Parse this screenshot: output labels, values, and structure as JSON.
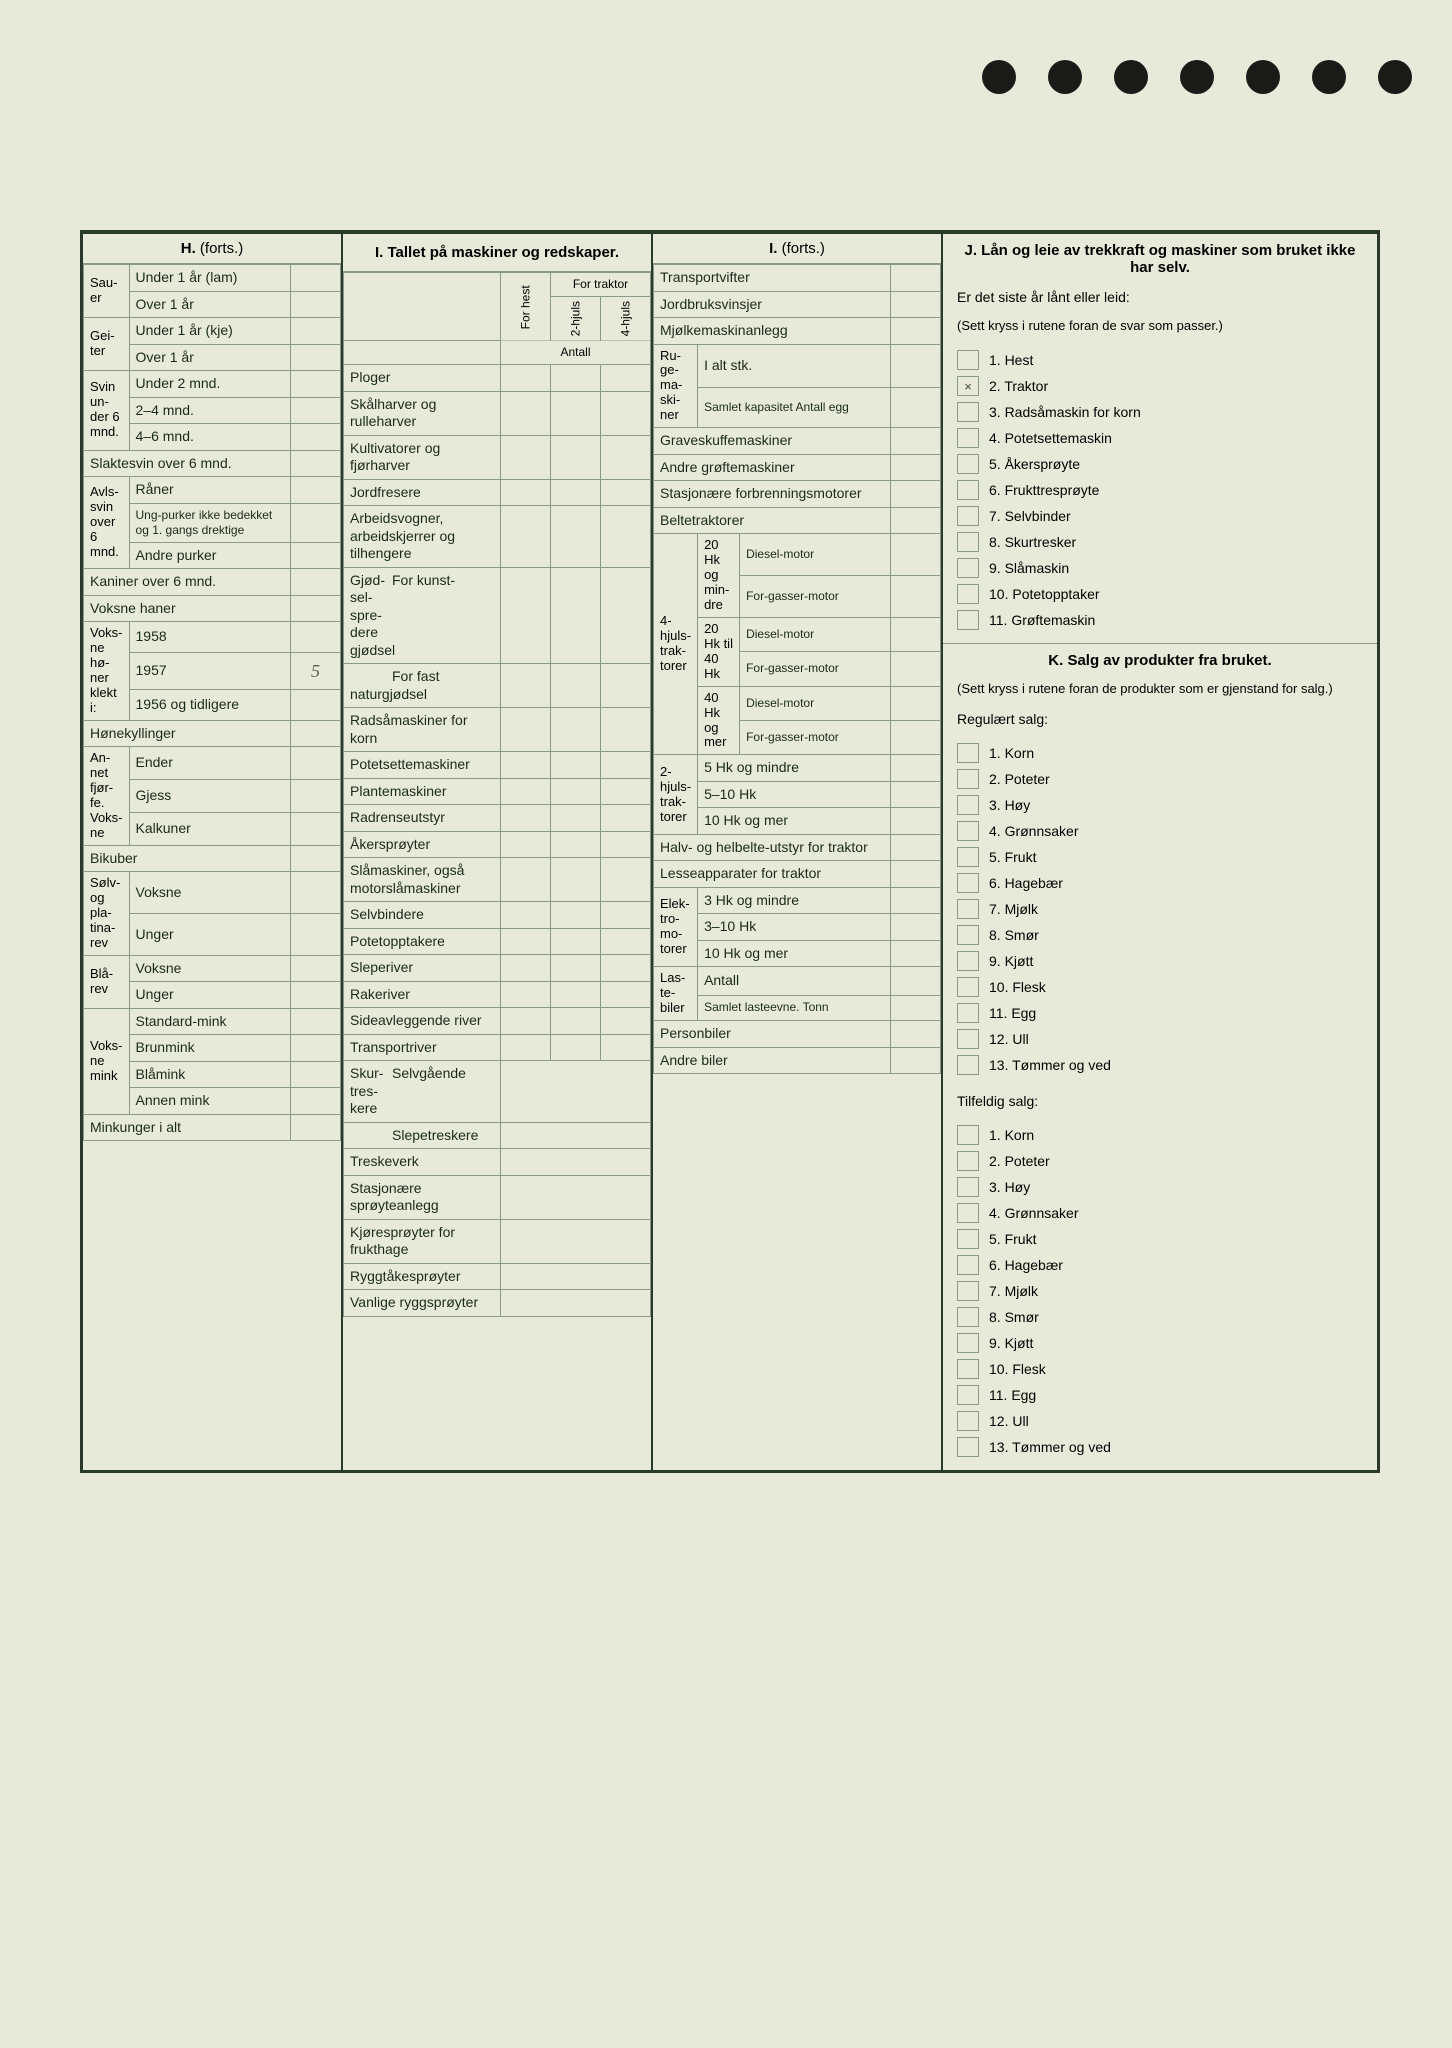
{
  "colors": {
    "paper": "#e8ead9",
    "ink": "#2a3a2a",
    "rule": "#8a9a8a",
    "hole": "#1a1a18"
  },
  "H": {
    "title_bold": "H.",
    "title_rest": "(forts.)",
    "sauer": "Sau-er",
    "sauer_rows": [
      "Under 1 år (lam)",
      "Over 1 år"
    ],
    "geiter": "Gei-ter",
    "geiter_rows": [
      "Under 1 år (kje)",
      "Over 1 år"
    ],
    "svin_under": "Svin un-der 6 mnd.",
    "svin_under_rows": [
      "Under 2 mnd.",
      "2–4 mnd.",
      "4–6 mnd."
    ],
    "slaktesvin": "Slaktesvin over 6 mnd.",
    "avlssvin": "Avls-svin over 6 mnd.",
    "avlssvin_rows": [
      "Råner",
      "Ung-purker ikke bedekket og 1. gangs drektige",
      "Andre purker"
    ],
    "kaniner": "Kaniner over 6 mnd.",
    "voksne_haner": "Voksne haner",
    "honer": "Voks-ne hø-ner klekt i:",
    "honer_rows": [
      "1958",
      "1957",
      "1956 og tidligere"
    ],
    "honekyllinger": "Hønekyllinger",
    "fjorfe": "An-net fjør-fe. Voks-ne",
    "fjorfe_rows": [
      "Ender",
      "Gjess",
      "Kalkuner"
    ],
    "bikuber": "Bikuber",
    "solvrev": "Sølv- og pla-tina-rev",
    "solvrev_rows": [
      "Voksne",
      "Unger"
    ],
    "blarev": "Blå-rev",
    "blarev_rows": [
      "Voksne",
      "Unger"
    ],
    "mink": "Voks-ne mink",
    "mink_rows": [
      "Standard-mink",
      "Brunmink",
      "Blåmink",
      "Annen mink"
    ],
    "minkunger": "Minkunger i alt",
    "handwritten_1957": "5"
  },
  "I": {
    "title_bold": "I.",
    "title_rest": "Tallet på maskiner og redskaper.",
    "forhest": "For hest",
    "tohjuls": "2-hjuls",
    "firehjuls": "4-hjuls",
    "for_traktor": "For traktor",
    "antall": "Antall",
    "rows": [
      "Ploger",
      "Skålharver og rulleharver",
      "Kultivatorer og fjørharver",
      "Jordfresere",
      "Arbeidsvogner, arbeidskjerrer og tilhengere"
    ],
    "gjodsel": "Gjød-sel-spre-dere",
    "gjodsel_rows": [
      "For kunst-gjødsel",
      "For fast naturgjødsel"
    ],
    "rows2": [
      "Radsåmaskiner for korn",
      "Potetsettemaskiner",
      "Plantemaskiner",
      "Radrenseutstyr",
      "Åkersprøyter",
      "Slåmaskiner, også motorslåmaskiner",
      "Selvbindere",
      "Potetopptakere",
      "Sleperiver",
      "Rakeriver",
      "Sideavleggende river",
      "Transportriver"
    ],
    "skurtreskere": "Skur-tres-kere",
    "skurtreskere_rows": [
      "Selvgående",
      "Slepetreskere"
    ],
    "rows3": [
      "Treskeverk",
      "Stasjonære sprøyteanlegg",
      "Kjøresprøyter for frukthage",
      "Ryggtåkesprøyter",
      "Vanlige ryggsprøyter"
    ]
  },
  "I2": {
    "title_bold": "I.",
    "title_rest": "(forts.)",
    "rows_top": [
      "Transportvifter",
      "Jordbruksvinsjer",
      "Mjølkemaskinanlegg"
    ],
    "ruge": "Ru-ge-ma-ski-ner",
    "ruge_rows": [
      "I alt stk.",
      "Samlet kapasitet Antall egg"
    ],
    "rows_mid": [
      "Graveskuffemaskiner",
      "Andre grøftemaskiner",
      "Stasjonære forbrenningsmotorer",
      "Beltetraktorer"
    ],
    "hjulstraktorer": "4-hjuls-trak-torer",
    "hk_groups": [
      "20 Hk og min-dre",
      "20 Hk til 40 Hk",
      "40 Hk og mer"
    ],
    "motor_types": [
      "Diesel-motor",
      "For-gasser-motor"
    ],
    "tohjuls_trak": "2-hjuls-trak-torer",
    "tohjuls_rows": [
      "5 Hk og mindre",
      "5–10 Hk",
      "10 Hk og mer"
    ],
    "halvbelte": "Halv- og helbelte-utstyr for traktor",
    "lesse": "Lesseapparater for traktor",
    "elektro": "Elek-tro-mo-torer",
    "elektro_rows": [
      "3 Hk og mindre",
      "3–10 Hk",
      "10 Hk og mer"
    ],
    "lastebiler": "Las-te-biler",
    "lastebiler_rows": [
      "Antall",
      "Samlet lasteevne. Tonn"
    ],
    "personbiler": "Personbiler",
    "andrebiler": "Andre biler"
  },
  "J": {
    "title": "J. Lån og leie av trekkraft og maskiner som bruket ikke har selv.",
    "q": "Er det siste år lånt eller leid:",
    "note": "(Sett kryss i rutene foran de svar som passer.)",
    "items": [
      "1. Hest",
      "2. Traktor",
      "3. Radsåmaskin for korn",
      "4. Potetsettemaskin",
      "5. Åkersprøyte",
      "6. Frukttresprøyte",
      "7. Selvbinder",
      "8. Skurtresker",
      "9. Slåmaskin",
      "10. Potetopptaker",
      "11. Grøftemaskin"
    ],
    "checked_index": 1,
    "check_mark": "×"
  },
  "K": {
    "title": "K. Salg av produkter fra bruket.",
    "note": "(Sett kryss i rutene foran de produkter som er gjenstand for salg.)",
    "reg_title": "Regulært salg:",
    "reg_items": [
      "1. Korn",
      "2. Poteter",
      "3. Høy",
      "4. Grønnsaker",
      "5. Frukt",
      "6. Hagebær",
      "7. Mjølk",
      "8. Smør",
      "9. Kjøtt",
      "10. Flesk",
      "11. Egg",
      "12. Ull",
      "13. Tømmer og ved"
    ],
    "tilf_title": "Tilfeldig salg:",
    "tilf_items": [
      "1. Korn",
      "2. Poteter",
      "3. Høy",
      "4. Grønnsaker",
      "5. Frukt",
      "6. Hagebær",
      "7. Mjølk",
      "8. Smør",
      "9. Kjøtt",
      "10. Flesk",
      "11. Egg",
      "12. Ull",
      "13. Tømmer og ved"
    ]
  }
}
